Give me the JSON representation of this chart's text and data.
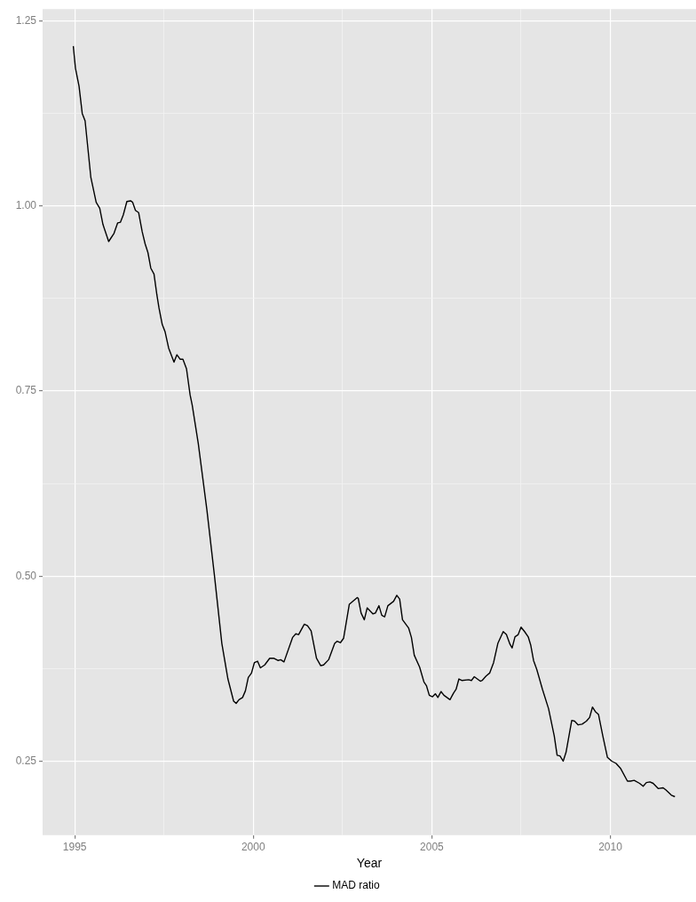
{
  "chart_data": {
    "type": "line",
    "xlabel": "Year",
    "legend": "bottom",
    "grid": true,
    "marker": "none",
    "line_style": "solid",
    "xlim": [
      1994.1,
      2012.4
    ],
    "xticks": [
      1995,
      {
        "value": 1997.5,
        "label": null
      },
      2000,
      {
        "value": 2002.5,
        "label": null
      },
      2005,
      {
        "value": 2007.5,
        "label": null
      },
      2010
    ],
    "ylim": [
      0.15,
      1.266
    ],
    "yticks": [
      {
        "value": 0.25,
        "label": "0.25"
      },
      {
        "value": 0.375,
        "label": null
      },
      {
        "value": 0.5,
        "label": "0.50"
      },
      {
        "value": 0.625,
        "label": null
      },
      {
        "value": 0.75,
        "label": "0.75"
      },
      {
        "value": 0.875,
        "label": null
      },
      {
        "value": 1.0,
        "label": "1.00"
      },
      {
        "value": 1.125,
        "label": null
      },
      {
        "value": 1.25,
        "label": "1.25"
      }
    ],
    "series": [
      {
        "name": "MAD ratio",
        "color": "#000000",
        "x": [
          1994.96,
          1995.02,
          1995.12,
          1995.21,
          1995.29,
          1995.45,
          1995.6,
          1995.7,
          1995.79,
          1995.95,
          1996.1,
          1996.2,
          1996.28,
          1996.36,
          1996.46,
          1996.57,
          1996.62,
          1996.7,
          1996.79,
          1996.89,
          1996.97,
          1997.05,
          1997.13,
          1997.22,
          1997.3,
          1997.36,
          1997.45,
          1997.53,
          1997.63,
          1997.78,
          1997.86,
          1997.95,
          1998.03,
          1998.13,
          1998.23,
          1998.29,
          1998.46,
          1998.7,
          1998.91,
          1999.12,
          1999.29,
          1999.45,
          1999.52,
          1999.6,
          1999.7,
          1999.78,
          1999.86,
          1999.95,
          2000.03,
          2000.12,
          2000.2,
          2000.32,
          2000.46,
          2000.57,
          2000.69,
          2000.77,
          2000.86,
          2001.1,
          2001.19,
          2001.27,
          2001.43,
          2001.52,
          2001.62,
          2001.77,
          2001.89,
          2001.97,
          2002.11,
          2002.28,
          2002.35,
          2002.44,
          2002.53,
          2002.69,
          2002.91,
          2002.94,
          2003.02,
          2003.11,
          2003.19,
          2003.35,
          2003.42,
          2003.52,
          2003.6,
          2003.68,
          2003.77,
          2003.93,
          2004.02,
          2004.1,
          2004.18,
          2004.35,
          2004.43,
          2004.51,
          2004.66,
          2004.78,
          2004.85,
          2004.93,
          2005.02,
          2005.1,
          2005.17,
          2005.26,
          2005.34,
          2005.51,
          2005.61,
          2005.68,
          2005.76,
          2005.84,
          2006.03,
          2006.11,
          2006.19,
          2006.36,
          2006.41,
          2006.52,
          2006.62,
          2006.73,
          2006.85,
          2007.0,
          2007.09,
          2007.19,
          2007.25,
          2007.33,
          2007.42,
          2007.5,
          2007.6,
          2007.7,
          2007.77,
          2007.85,
          2007.94,
          2008.1,
          2008.27,
          2008.43,
          2008.51,
          2008.59,
          2008.68,
          2008.76,
          2008.92,
          2009.0,
          2009.1,
          2009.21,
          2009.33,
          2009.42,
          2009.5,
          2009.58,
          2009.67,
          2009.79,
          2009.92,
          2010.04,
          2010.16,
          2010.29,
          2010.48,
          2010.56,
          2010.67,
          2010.82,
          2010.92,
          2011.01,
          2011.11,
          2011.2,
          2011.34,
          2011.48,
          2011.56,
          2011.71,
          2011.81
        ],
        "values": [
          1.216,
          1.186,
          1.162,
          1.125,
          1.115,
          1.039,
          1.005,
          0.997,
          0.975,
          0.952,
          0.963,
          0.977,
          0.978,
          0.988,
          1.006,
          1.007,
          1.005,
          0.994,
          0.991,
          0.965,
          0.949,
          0.937,
          0.916,
          0.908,
          0.88,
          0.862,
          0.84,
          0.83,
          0.808,
          0.789,
          0.799,
          0.793,
          0.793,
          0.78,
          0.745,
          0.731,
          0.679,
          0.59,
          0.502,
          0.409,
          0.361,
          0.331,
          0.328,
          0.333,
          0.336,
          0.345,
          0.363,
          0.369,
          0.383,
          0.385,
          0.376,
          0.38,
          0.389,
          0.389,
          0.386,
          0.387,
          0.384,
          0.417,
          0.422,
          0.421,
          0.435,
          0.433,
          0.426,
          0.389,
          0.379,
          0.38,
          0.387,
          0.409,
          0.412,
          0.41,
          0.416,
          0.462,
          0.471,
          0.47,
          0.45,
          0.441,
          0.457,
          0.449,
          0.45,
          0.46,
          0.447,
          0.445,
          0.46,
          0.466,
          0.474,
          0.469,
          0.441,
          0.43,
          0.417,
          0.393,
          0.377,
          0.357,
          0.352,
          0.339,
          0.337,
          0.341,
          0.336,
          0.344,
          0.339,
          0.333,
          0.342,
          0.347,
          0.361,
          0.359,
          0.36,
          0.359,
          0.364,
          0.358,
          0.359,
          0.365,
          0.369,
          0.383,
          0.409,
          0.425,
          0.421,
          0.408,
          0.403,
          0.418,
          0.421,
          0.431,
          0.425,
          0.418,
          0.407,
          0.386,
          0.374,
          0.347,
          0.321,
          0.284,
          0.258,
          0.257,
          0.25,
          0.262,
          0.305,
          0.304,
          0.299,
          0.3,
          0.304,
          0.309,
          0.323,
          0.317,
          0.313,
          0.284,
          0.255,
          0.25,
          0.247,
          0.24,
          0.223,
          0.223,
          0.224,
          0.22,
          0.216,
          0.221,
          0.222,
          0.22,
          0.213,
          0.214,
          0.211,
          0.204,
          0.202
        ]
      }
    ]
  }
}
